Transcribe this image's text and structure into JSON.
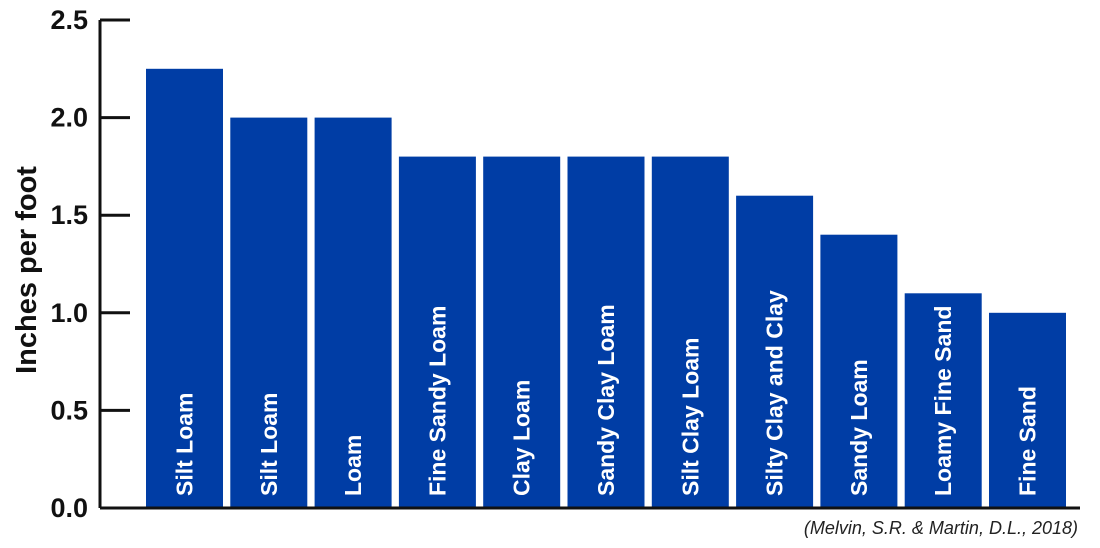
{
  "chart_data": {
    "type": "bar",
    "categories": [
      "Silt Loam",
      "Silt Loam",
      "Loam",
      "Fine Sandy Loam",
      "Clay Loam",
      "Sandy Clay Loam",
      "Silt Clay Loam",
      "Silty Clay and Clay",
      "Sandy Loam",
      "Loamy Fine Sand",
      "Fine Sand"
    ],
    "values": [
      2.25,
      2.0,
      2.0,
      1.8,
      1.8,
      1.8,
      1.8,
      1.6,
      1.4,
      1.1,
      1.0
    ],
    "title": "",
    "xlabel": "",
    "ylabel": "Inches per foot",
    "ylim": [
      0,
      2.5
    ],
    "yticks": [
      "0.0",
      "0.5",
      "1.0",
      "1.5",
      "2.0",
      "2.5"
    ],
    "grid": false,
    "legend": "none",
    "bar_color": "#003DA5",
    "bar_label_position": "inside-vertical",
    "source": "(Melvin, S.R. & Martin, D.L., 2018)"
  }
}
